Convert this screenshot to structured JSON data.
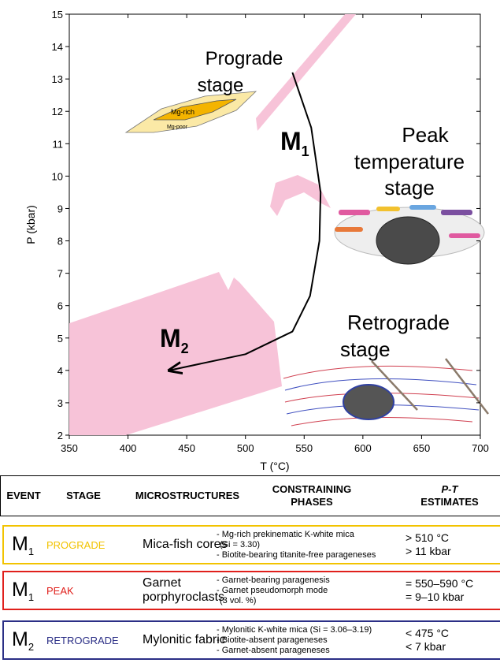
{
  "chart_data": {
    "type": "line",
    "x_label": "T (°C)",
    "y_label": "P (kbar)",
    "xlim": [
      350,
      700
    ],
    "ylim": [
      2,
      15
    ],
    "xticks": [
      350,
      400,
      450,
      500,
      550,
      600,
      650,
      700
    ],
    "yticks": [
      2,
      3,
      4,
      5,
      6,
      7,
      8,
      9,
      10,
      11,
      12,
      13,
      14,
      15
    ],
    "series": [
      {
        "color": "#000000",
        "x": [
          540,
          556,
          564,
          563,
          555,
          540,
          500,
          435
        ],
        "values": [
          13.2,
          11.5,
          9.5,
          8.0,
          6.3,
          5.2,
          4.5,
          4.0
        ]
      }
    ],
    "stage_labels": {
      "prograde": [
        "Prograde",
        "stage"
      ],
      "peak": [
        "Peak",
        "temperature",
        "stage"
      ],
      "retrograde": [
        "Retrograde",
        "stage"
      ]
    },
    "event_labels": [
      {
        "text": "M",
        "subscript": "1"
      },
      {
        "text": "M",
        "subscript": "2"
      }
    ],
    "mica_labels": [
      "Mg-rich",
      "Mg-poor"
    ]
  },
  "table": {
    "header": [
      [
        "EVENT"
      ],
      [
        "STAGE"
      ],
      [
        "MICROSTRUCTURES"
      ],
      [
        "CONSTRAINING",
        "PHASES"
      ],
      [
        "P-T",
        "ESTIMATES"
      ]
    ],
    "rows": [
      {
        "event": {
          "text": "M",
          "subscript": "1"
        },
        "stage": "PROGRADE",
        "color": "#f2c300",
        "microstructures": [
          "Mica-fish cores"
        ],
        "phases": [
          "- Mg-rich prekinematic K-white mica",
          "(Si = 3.30)",
          "- Biotite-bearing titanite-free parageneses"
        ],
        "estimates": [
          "> 510 °C",
          "> 11 kbar"
        ]
      },
      {
        "event": {
          "text": "M",
          "subscript": "1"
        },
        "stage": "PEAK",
        "color": "#e0201c",
        "microstructures": [
          "Garnet",
          "porphyroclasts"
        ],
        "phases": [
          "- Garnet-bearing paragenesis",
          "- Garnet pseudomorph mode",
          "(3 vol. %)"
        ],
        "estimates": [
          "= 550–590 °C",
          "= 9–10 kbar"
        ]
      },
      {
        "event": {
          "text": "M",
          "subscript": "2"
        },
        "stage": "RETROGRADE",
        "color": "#2b2f86",
        "microstructures": [
          "Mylonitic fabric"
        ],
        "phases": [
          "- Mylonitic K-white mica (Si = 3.06–3.19)",
          "- Biotite-absent parageneses",
          "- Garnet-absent parageneses"
        ],
        "estimates": [
          "< 475 °C",
          "< 7 kbar"
        ]
      }
    ]
  }
}
